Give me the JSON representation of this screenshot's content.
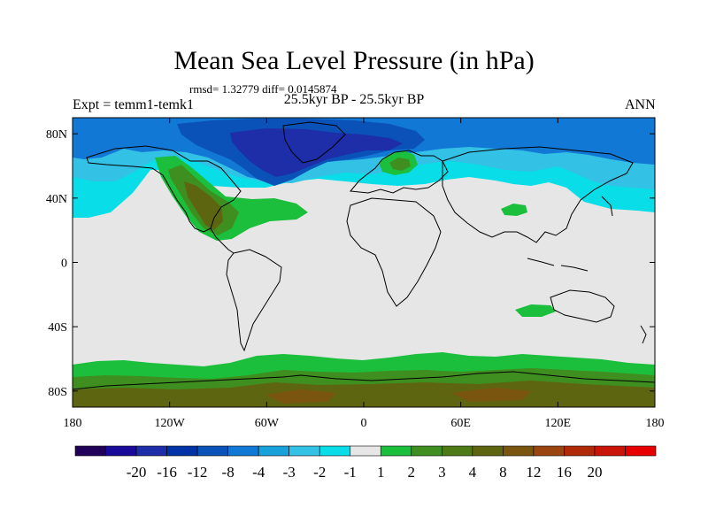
{
  "map": {
    "title": "Mean Sea Level Pressure (in hPa)",
    "stats_line": "rmsd= 1.32779  diff= 0.0145874",
    "subtitle": "25.5kyr BP - 25.5kyr BP",
    "left_label": "Expt = temm1-temk1",
    "right_label": "ANN",
    "projection": "cylindrical equidistant",
    "lon_range": [
      -180,
      180
    ],
    "lat_range": [
      -90,
      90
    ],
    "lon_ticks": [
      {
        "value": -180,
        "label": "180"
      },
      {
        "value": -120,
        "label": "120W"
      },
      {
        "value": -60,
        "label": "60W"
      },
      {
        "value": 0,
        "label": "0"
      },
      {
        "value": 60,
        "label": "60E"
      },
      {
        "value": 120,
        "label": "120E"
      },
      {
        "value": 180,
        "label": "180"
      }
    ],
    "lat_ticks": [
      {
        "value": 80,
        "label": "80N"
      },
      {
        "value": 40,
        "label": "40N"
      },
      {
        "value": 0,
        "label": "0"
      },
      {
        "value": -40,
        "label": "40S"
      },
      {
        "value": -80,
        "label": "80S"
      }
    ],
    "background_color": "#e6e6e6",
    "coast_color": "#000000"
  },
  "colorbar": {
    "colors": [
      "#21005a",
      "#1a0a99",
      "#1d2ea8",
      "#0033a5",
      "#0a52b8",
      "#1178d6",
      "#19a1dc",
      "#33c2e5",
      "#08dde8",
      "#e6e6e6",
      "#1bbf3c",
      "#3e8f1f",
      "#4e7a16",
      "#5e6510",
      "#7a5510",
      "#9a4410",
      "#b02a08",
      "#c81508",
      "#e60000"
    ],
    "labels": [
      "-20",
      "-16",
      "-12",
      "-8",
      "-4",
      "-3",
      "-2",
      "-1",
      "1",
      "2",
      "3",
      "4",
      "8",
      "12",
      "16",
      "20"
    ]
  }
}
